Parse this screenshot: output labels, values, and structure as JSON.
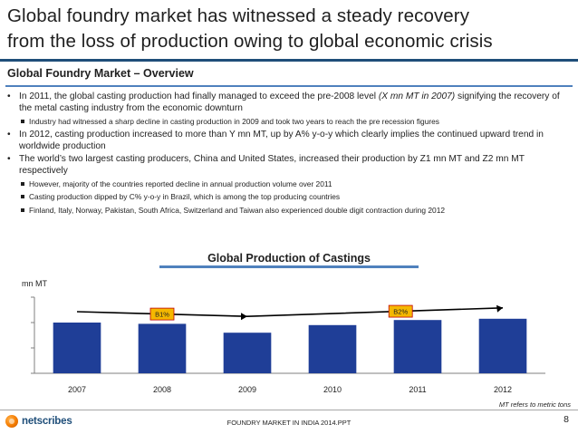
{
  "slide": {
    "title_line1": "Global foundry market has witnessed a steady recovery",
    "title_line2": "from the loss of production owing to global economic crisis",
    "section_title": "Global Foundry Market – Overview",
    "page_number": "8"
  },
  "bullets": {
    "b1_text": "In 2011, the global casting production had finally managed to exceed the pre-2008 level ",
    "b1_italic": "(X mn MT in 2007)",
    "b1_tail": " signifying the recovery of the metal casting industry from the economic downturn",
    "b1_sub1": "Industry had witnessed a sharp decline in casting production in 2009 and took two years to reach the pre recession figures",
    "b2_text": "In 2012, casting production increased to more than Y mn MT, up by A% y-o-y which clearly implies the continued upward trend in worldwide production",
    "b3_text": "The world’s two largest casting producers, China and United States, increased their production by Z1 mn MT and Z2 mn MT respectively",
    "b3_sub1": "However, majority of the countries reported decline in annual production volume over 2011",
    "b3_sub2": "Casting production dipped by C% y-o-y in Brazil, which is among the top producing countries",
    "b3_sub3": "Finland, Italy, Norway, Pakistan, South Africa, Switzerland and Taiwan also experienced double digit contraction during 2012"
  },
  "chart_data": {
    "type": "bar",
    "title": "Global Production of Castings",
    "ylabel": "mn MT",
    "xlabel": "",
    "categories": [
      "2007",
      "2008",
      "2009",
      "2010",
      "2011",
      "2012"
    ],
    "values": [
      20,
      19.5,
      16,
      19,
      21,
      21.5
    ],
    "ylim": [
      0,
      30
    ],
    "y_tick_labels_shown": false,
    "bar_color": "#1f3e97",
    "annotations": [
      {
        "label": "B1%",
        "from": "2007",
        "to": "2009"
      },
      {
        "label": "B2%",
        "from": "2009",
        "to": "2012"
      }
    ],
    "annotation_fill": "#f5b800",
    "annotation_border": "#c00000"
  },
  "footer": {
    "note": "MT refers to metric tons",
    "brand": "netscribes",
    "center_text": "FOUNDRY MARKET IN INDIA 2014.PPT"
  },
  "colors": {
    "accent_dark": "#1f4e79",
    "accent_line": "#4f81bd",
    "logo_orange": "#f57c00"
  }
}
